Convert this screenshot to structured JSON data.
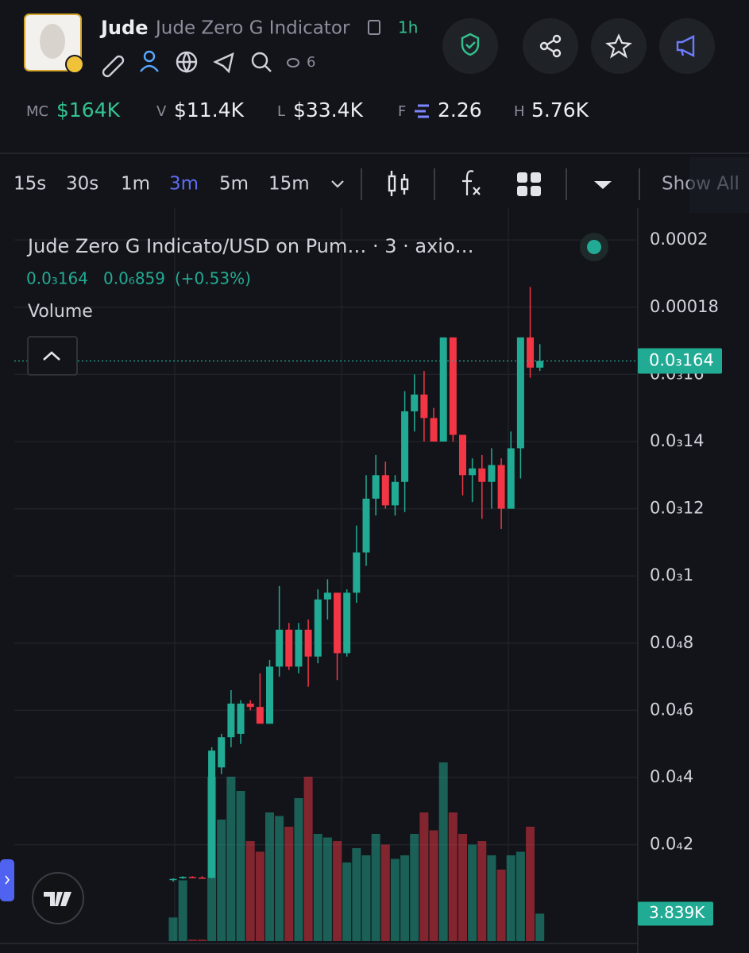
{
  "header": {
    "name": "Jude",
    "full_name": "Jude Zero G Indicator",
    "age": "1h",
    "watchers": "6"
  },
  "stats": [
    {
      "label": "MC",
      "value": "$164K"
    },
    {
      "label": "V",
      "value": "$11.4K"
    },
    {
      "label": "L",
      "value": "$33.4K"
    },
    {
      "label": "F",
      "value": "2.26"
    },
    {
      "label": "H",
      "value": "5.76K"
    }
  ],
  "toolbar": {
    "timeframes": [
      "15s",
      "30s",
      "1m",
      "3m",
      "5m",
      "15m"
    ],
    "active_timeframe": 3,
    "show_all": "Show All"
  },
  "chart_data": {
    "type": "candlestick",
    "title": "Jude Zero G Indicato/USD on Pum… · 3 · axio…",
    "last_price_label": "0.0₃164",
    "legend_change": "0.0₆859",
    "legend_change_pct": "(+0.53%)",
    "volume_label": "Volume",
    "last_volume_label": "3.839K",
    "up_color": "#22ab94",
    "down_color": "#f23645",
    "grid": true,
    "open": [
      9.5e-06,
      1e-05,
      1.04e-05,
      1.02e-05,
      1.01e-05,
      4.3e-05,
      5.2e-05,
      5.3e-05,
      6.2e-05,
      6.1e-05,
      5.6e-05,
      7.3e-05,
      8.4e-05,
      7.3e-05,
      8.4e-05,
      7.6e-05,
      9.3e-05,
      9.5e-05,
      7.7e-05,
      9.5e-05,
      0.000107,
      0.000123,
      0.00013,
      0.000121,
      0.000128,
      0.000149,
      0.000154,
      0.000147,
      0.00014,
      0.000171,
      0.000142,
      0.00013,
      0.000132,
      0.000128,
      0.000133,
      0.00012,
      0.000138,
      0.000171,
      0.000162
    ],
    "high": [
      1e-05,
      1.06e-05,
      1.06e-05,
      1.06e-05,
      4.9e-05,
      5.3e-05,
      6.6e-05,
      6.3e-05,
      6.3e-05,
      7.1e-05,
      7.5e-05,
      9.7e-05,
      8.6e-05,
      8.6e-05,
      8.7e-05,
      9.6e-05,
      9.9e-05,
      9.5e-05,
      9.6e-05,
      0.000115,
      0.00013,
      0.000136,
      0.000134,
      0.00013,
      0.000155,
      0.00016,
      0.000161,
      0.00015,
      0.000171,
      0.000171,
      0.000142,
      0.000135,
      0.000136,
      0.000138,
      0.000135,
      0.000143,
      0.000171,
      0.000186,
      0.000169
    ],
    "low": [
      9e-06,
      9.8e-06,
      1e-05,
      1e-05,
      1e-05,
      4.1e-05,
      4.9e-05,
      5e-05,
      6e-05,
      5.6e-05,
      5.6e-05,
      7e-05,
      7.2e-05,
      7.1e-05,
      6.7e-05,
      7.4e-05,
      8.7e-05,
      6.9e-05,
      7.6e-05,
      9.2e-05,
      0.000103,
      0.000118,
      0.00012,
      0.000118,
      0.000119,
      0.000143,
      0.00014,
      0.00014,
      0.00014,
      0.00014,
      0.000124,
      0.000122,
      0.000117,
      0.00012,
      0.000114,
      0.00012,
      0.000129,
      0.000159,
      0.000161
    ],
    "close": [
      9.8e-06,
      1.04e-05,
      1.02e-05,
      1.01e-05,
      4.8e-05,
      5.2e-05,
      6.2e-05,
      6.2e-05,
      6.1e-05,
      5.6e-05,
      7.3e-05,
      8.4e-05,
      7.3e-05,
      8.4e-05,
      7.6e-05,
      9.3e-05,
      9.5e-05,
      7.7e-05,
      9.5e-05,
      0.000107,
      0.000123,
      0.00013,
      0.000121,
      0.000128,
      0.000149,
      0.000154,
      0.000147,
      0.00014,
      0.000171,
      0.000142,
      0.00013,
      0.000132,
      0.000128,
      0.000133,
      0.00012,
      0.000138,
      0.000171,
      0.000162,
      0.000164
    ],
    "volume": [
      3300,
      8500,
      200,
      200,
      23000,
      17000,
      23000,
      21000,
      14000,
      12500,
      18000,
      17500,
      16000,
      20000,
      23000,
      15000,
      14500,
      14000,
      11000,
      13000,
      12000,
      15000,
      13500,
      11500,
      12000,
      15000,
      18000,
      15500,
      25000,
      18000,
      15000,
      13500,
      14000,
      12000,
      10000,
      12000,
      12500,
      16000,
      3839
    ],
    "ylim": [
      -8.7e-06,
      0.0002095
    ],
    "yticks": [
      0.0002,
      0.00018,
      {
        "value": 0.00016,
        "label": "0.0₃16"
      },
      {
        "value": 0.00014,
        "label": "0.0₃14"
      },
      {
        "value": 0.00012,
        "label": "0.0₃12"
      },
      {
        "value": 0.0001,
        "label": "0.0₃1"
      },
      {
        "value": 8e-05,
        "label": "0.0₄8"
      },
      {
        "value": 6e-05,
        "label": "0.0₄6"
      },
      {
        "value": 4e-05,
        "label": "0.0₄4"
      },
      {
        "value": 2e-05,
        "label": "0.0₄2"
      }
    ],
    "y2lim": [
      0,
      30000
    ]
  }
}
